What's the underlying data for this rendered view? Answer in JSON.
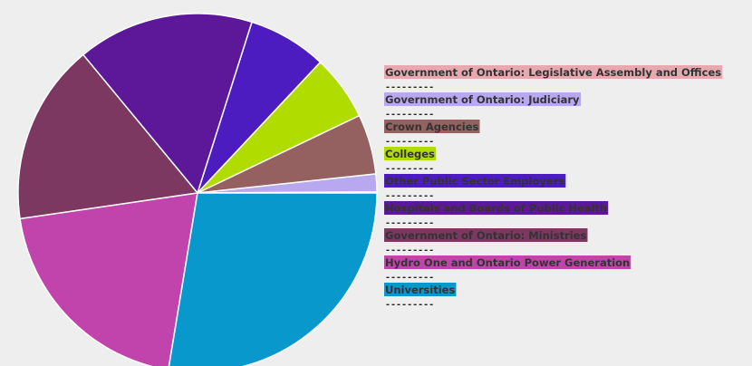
{
  "chart_data": {
    "type": "pie",
    "categories": [
      "Government of Ontario: Legislative Assembly and Offices",
      "Government of Ontario: Judiciary",
      "Crown Agencies",
      "Colleges",
      "Other Public Sector Employers",
      "Hospitals and Boards of Public Health",
      "Government of Ontario: Ministries",
      "Hydro One and Ontario Power Generation",
      "Universities"
    ],
    "values": [
      0.1,
      1.6,
      5.4,
      5.9,
      7.1,
      15.9,
      16.3,
      20.1,
      27.6
    ],
    "colors": [
      "#e8a8b0",
      "#b8a8f0",
      "#946060",
      "#b0dc00",
      "#4c1cc0",
      "#5c1898",
      "#7c3860",
      "#c044ac",
      "#0898cc"
    ],
    "legend_separator": "---------",
    "legend_position": "right"
  }
}
